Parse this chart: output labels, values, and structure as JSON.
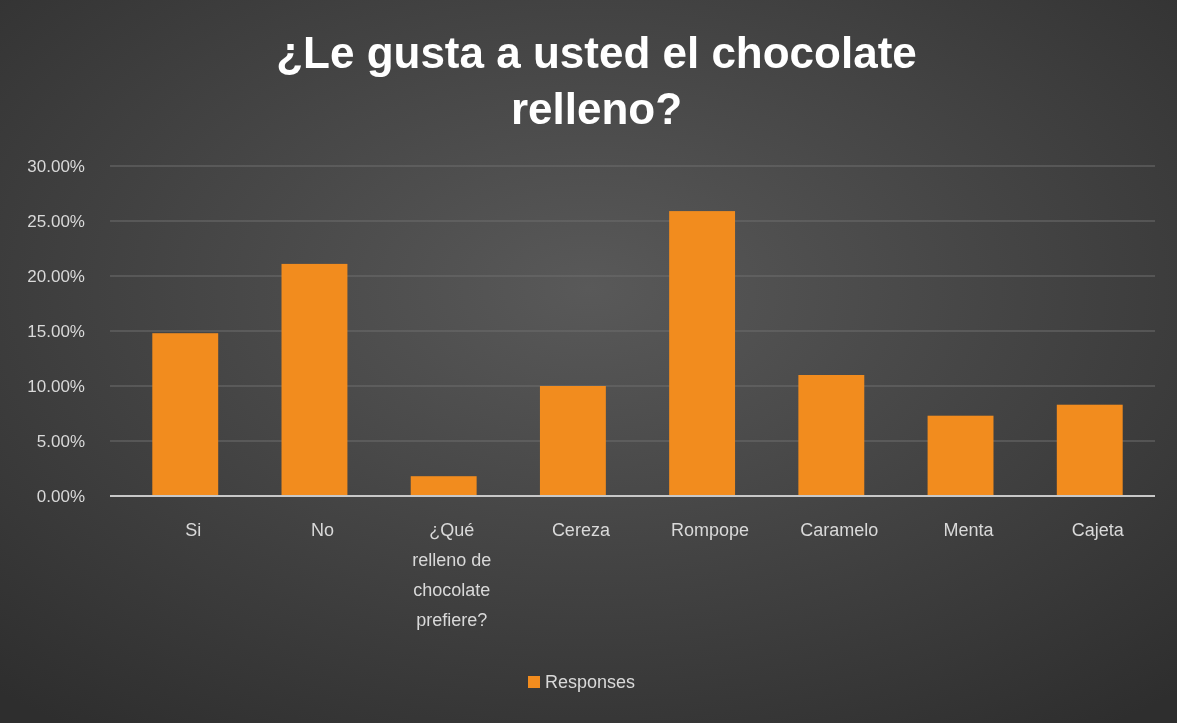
{
  "chart_data": {
    "type": "bar",
    "title": "¿Le gusta a usted el chocolate relleno?",
    "categories": [
      "Si",
      "No",
      "¿Qué relleno de chocolate prefiere?",
      "Cereza",
      "Rompope",
      "Caramelo",
      "Menta",
      "Cajeta"
    ],
    "series": [
      {
        "name": "Responses",
        "color": "#f28c1e",
        "values": [
          14.8,
          21.1,
          1.8,
          10.0,
          25.9,
          11.0,
          7.3,
          8.3
        ]
      }
    ],
    "ylim": [
      0,
      30
    ],
    "yticks": [
      {
        "value": 0,
        "label": "0.00%"
      },
      {
        "value": 5,
        "label": "5.00%"
      },
      {
        "value": 10,
        "label": "10.00%"
      },
      {
        "value": 15,
        "label": "15.00%"
      },
      {
        "value": 20,
        "label": "20.00%"
      },
      {
        "value": 25,
        "label": "25.00%"
      },
      {
        "value": 30,
        "label": "30.00%"
      }
    ],
    "grid": "y",
    "legend": "bottom"
  }
}
